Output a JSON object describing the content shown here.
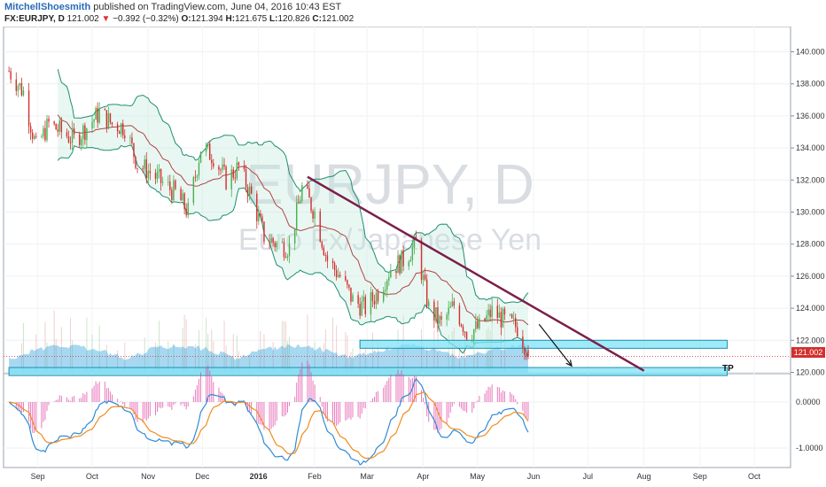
{
  "header": {
    "author": "MitchellShoesmith",
    "published_text": "published on TradingView.com, June 04, 2016 10:43 EST",
    "symbol": "FX:EURJPY, D",
    "last": "121.002",
    "change": "−0.392 (−0.32%)",
    "o_label": "O:",
    "o_value": "121.394",
    "h_label": "H:",
    "h_value": "121.675",
    "l_label": "L:",
    "l_value": "120.826",
    "c_label": "C:",
    "c_value": "121.002"
  },
  "watermark": {
    "symbol": "EURJPY, D",
    "name": "Euro Fx/Japanese Yen"
  },
  "colors": {
    "up": "#4caf50",
    "down": "#d32f2f",
    "trendline": "#7b1f4a",
    "zone_fill": "#7fe3f5",
    "zone_stroke": "#1b8fb0",
    "bb": "#1e8f6f",
    "bb_fill": "#bfe9dc",
    "basis": "#b24444",
    "macd": "#2f8bd6",
    "signal": "#f08c1e",
    "hist": "#e040a0",
    "price_tag": "#d32f2f",
    "volume": "#3fa9e0"
  },
  "chart_data": {
    "type": "candlestick",
    "yaxis_price": {
      "ticks": [
        140.0,
        138.0,
        136.0,
        134.0,
        132.0,
        130.0,
        128.0,
        126.0,
        124.0,
        122.0,
        120.0
      ],
      "tick_labels": [
        "140.000",
        "138.000",
        "136.000",
        "134.000",
        "132.000",
        "130.000",
        "128.000",
        "126.000",
        "124.000",
        "122.000",
        "120.000"
      ]
    },
    "yaxis_macd": {
      "ticks": [
        0.0,
        -1.0
      ],
      "tick_labels": [
        "0.0000",
        "-1.0000"
      ]
    },
    "xaxis_labels": [
      "Sep",
      "Oct",
      "Nov",
      "Dec",
      "2016",
      "Feb",
      "Mar",
      "Apr",
      "May",
      "Jun",
      "Jul",
      "Aug",
      "Sep",
      "Oct"
    ],
    "last_price_label": "121.002",
    "tp_label": "TP",
    "price_path": [
      [
        "2015-08-20",
        138.8
      ],
      [
        "2015-08-28",
        137.5
      ],
      [
        "2015-09-04",
        134.0
      ],
      [
        "2015-09-11",
        135.5
      ],
      [
        "2015-09-18",
        135.0
      ],
      [
        "2015-09-25",
        134.5
      ],
      [
        "2015-10-02",
        135.3
      ],
      [
        "2015-10-09",
        136.2
      ],
      [
        "2015-10-16",
        135.5
      ],
      [
        "2015-10-23",
        135.3
      ],
      [
        "2015-10-30",
        133.0
      ],
      [
        "2015-11-06",
        132.5
      ],
      [
        "2015-11-13",
        131.8
      ],
      [
        "2015-11-20",
        131.2
      ],
      [
        "2015-11-27",
        130.0
      ],
      [
        "2015-12-04",
        134.0
      ],
      [
        "2015-12-11",
        133.5
      ],
      [
        "2015-12-18",
        132.0
      ],
      [
        "2015-12-25",
        132.8
      ],
      [
        "2016-01-01",
        131.0
      ],
      [
        "2016-01-08",
        128.5
      ],
      [
        "2016-01-15",
        128.0
      ],
      [
        "2016-01-22",
        127.8
      ],
      [
        "2016-01-29",
        131.5
      ],
      [
        "2016-02-05",
        130.0
      ],
      [
        "2016-02-12",
        127.0
      ],
      [
        "2016-02-19",
        126.0
      ],
      [
        "2016-02-26",
        124.5
      ],
      [
        "2016-03-04",
        124.0
      ],
      [
        "2016-03-11",
        125.0
      ],
      [
        "2016-03-18",
        126.5
      ],
      [
        "2016-03-25",
        127.0
      ],
      [
        "2016-04-01",
        128.0
      ],
      [
        "2016-04-08",
        124.0
      ],
      [
        "2016-04-15",
        123.0
      ],
      [
        "2016-04-22",
        124.2
      ],
      [
        "2016-04-29",
        122.5
      ],
      [
        "2016-05-06",
        122.8
      ],
      [
        "2016-05-13",
        123.8
      ],
      [
        "2016-05-20",
        123.2
      ],
      [
        "2016-05-27",
        122.8
      ],
      [
        "2016-06-03",
        121.0
      ]
    ],
    "trendline": {
      "from": [
        "2016-02-01",
        132.2
      ],
      "to": [
        "2016-08-05",
        120.1
      ]
    },
    "zones": [
      {
        "from_date": "2016-03-01",
        "to_date": "2016-09-20",
        "top": 122.0,
        "bottom": 121.5
      },
      {
        "from_date": "2015-08-20",
        "to_date": "2016-09-20",
        "top": 120.3,
        "bottom": 119.8
      }
    ],
    "arrow": {
      "from": [
        "2016-06-08",
        123.0
      ],
      "to": [
        "2016-06-26",
        120.4
      ]
    }
  }
}
